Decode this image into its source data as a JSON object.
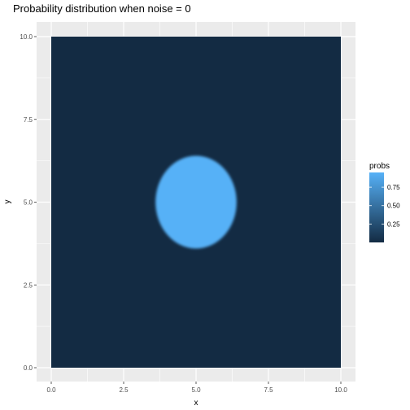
{
  "chart_data": {
    "type": "heatmap",
    "title": "Probability distribution when noise = 0",
    "xlabel": "x",
    "ylabel": "y",
    "xlim": [
      0,
      10
    ],
    "ylim": [
      0,
      10
    ],
    "xticks": [
      {
        "value": 0,
        "label": "0.0"
      },
      {
        "value": 2.5,
        "label": "2.5"
      },
      {
        "value": 5,
        "label": "5.0"
      },
      {
        "value": 7.5,
        "label": "7.5"
      },
      {
        "value": 10,
        "label": "10.0"
      }
    ],
    "yticks": [
      {
        "value": 0,
        "label": "0.0"
      },
      {
        "value": 2.5,
        "label": "2.5"
      },
      {
        "value": 5,
        "label": "5.0"
      },
      {
        "value": 7.5,
        "label": "7.5"
      },
      {
        "value": 10,
        "label": "10.0"
      }
    ],
    "background_prob": 0.0,
    "region": {
      "shape": "ellipse",
      "center_x": 5,
      "center_y": 5,
      "radius_x": 1.4,
      "radius_y": 1.4,
      "prob": 0.95
    },
    "grid": true,
    "legend": {
      "title": "probs",
      "placement": "right",
      "range": [
        0.0,
        0.95
      ],
      "ticks": [
        {
          "value": 0.25,
          "label": "0.25"
        },
        {
          "value": 0.5,
          "label": "0.50"
        },
        {
          "value": 0.75,
          "label": "0.75"
        }
      ],
      "low_color": "#132B43",
      "high_color": "#56B1F7"
    },
    "panel_background": "#EBEBEB",
    "grid_color": "#FFFFFF"
  }
}
